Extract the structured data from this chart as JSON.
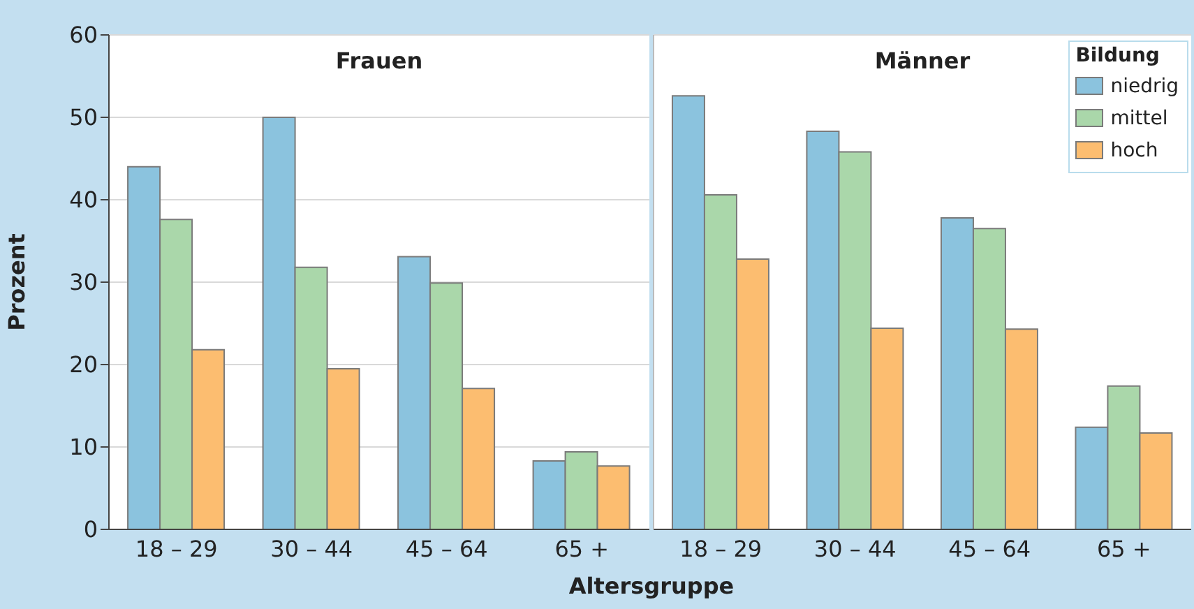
{
  "chart_data": [
    {
      "type": "bar",
      "title": "Frauen",
      "xlabel": "Altersgruppe",
      "ylabel": "Prozent",
      "categories": [
        "18 – 29",
        "30 – 44",
        "45 – 64",
        "65 +"
      ],
      "series": [
        {
          "color": "#8bc3de",
          "values": [
            44.0,
            50.0,
            33.1,
            8.3
          ]
        },
        {
          "color": "#aad7aa",
          "values": [
            37.6,
            31.8,
            29.9,
            9.4
          ]
        },
        {
          "color": "#fcbd70",
          "values": [
            21.8,
            19.5,
            17.1,
            7.7
          ]
        }
      ],
      "ylim": [
        0,
        60
      ],
      "yticks": [
        0,
        10,
        20,
        30,
        40,
        50,
        60
      ],
      "grid": "y",
      "legend": false
    },
    {
      "type": "bar",
      "title": "Männer",
      "legend_title": "Bildung",
      "categories": [
        "18 – 29",
        "30 – 44",
        "45 – 64",
        "65 +"
      ],
      "series": [
        {
          "name": "niedrig",
          "color": "#8bc3de",
          "values": [
            52.6,
            48.3,
            37.8,
            12.4
          ]
        },
        {
          "name": "mittel",
          "color": "#aad7aa",
          "values": [
            40.6,
            45.8,
            36.5,
            17.4
          ]
        },
        {
          "name": "hoch",
          "color": "#fcbd70",
          "values": [
            32.8,
            24.4,
            24.3,
            11.7
          ]
        }
      ],
      "ylim": [
        0,
        60
      ],
      "yticks": [
        0,
        10,
        20,
        30,
        40,
        50,
        60
      ],
      "grid": "y",
      "legend": "top right",
      "tick_labels": "x"
    }
  ]
}
